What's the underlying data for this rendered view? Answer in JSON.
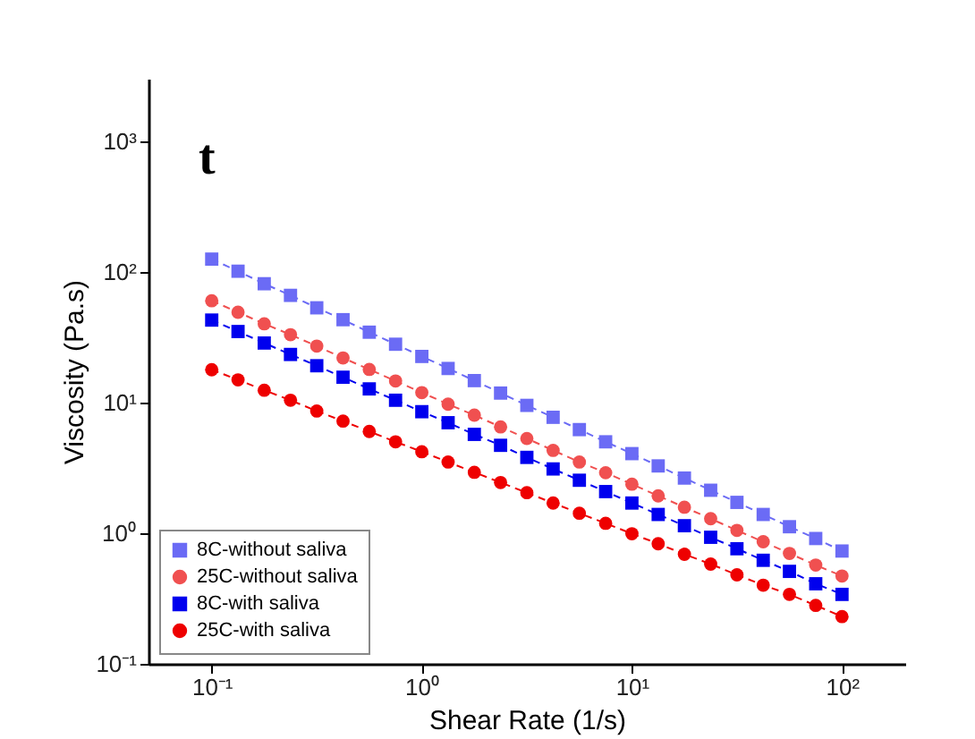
{
  "chart_data": {
    "type": "line",
    "xlabel": "Shear Rate (1/s)",
    "ylabel": "Viscosity (Pa.s)",
    "annotations": [
      "t"
    ],
    "log": "xy",
    "grid": false,
    "legend": "bottom left",
    "line_style": "dashed",
    "x": [
      0.1,
      0.1334,
      0.1778,
      0.2371,
      0.3162,
      0.4217,
      0.5623,
      0.7499,
      1,
      1.334,
      1.778,
      2.371,
      3.162,
      4.217,
      5.623,
      7.499,
      10,
      13.34,
      17.78,
      23.71,
      31.62,
      42.17,
      56.23,
      74.99,
      100
    ],
    "xlim": [
      0.05,
      200
    ],
    "ylim": [
      0.1,
      3000
    ],
    "xticks": [
      {
        "value": 0.1,
        "label": "10⁻¹"
      },
      {
        "value": 1,
        "label": "10⁰"
      },
      {
        "value": 10,
        "label": "10¹"
      },
      {
        "value": 100,
        "label": "10²"
      }
    ],
    "yticks": [
      {
        "value": 0.1,
        "label": "10⁻¹"
      },
      {
        "value": 1,
        "label": "10⁰"
      },
      {
        "value": 10,
        "label": "10¹"
      },
      {
        "value": 100,
        "label": "10²"
      },
      {
        "value": 1000,
        "label": "10³"
      }
    ],
    "series": [
      {
        "name": "8C-without saliva",
        "color": "#6b6bf5",
        "marker": "square",
        "values": [
          125,
          101,
          81,
          66,
          53,
          43,
          34.5,
          27.9,
          22.5,
          18.2,
          14.7,
          11.8,
          9.5,
          7.7,
          6.2,
          5.0,
          4.06,
          3.27,
          2.64,
          2.13,
          1.72,
          1.39,
          1.12,
          0.91,
          0.73
        ]
      },
      {
        "name": "25C-without saliva",
        "color": "#f05050",
        "marker": "circle",
        "values": [
          60,
          49,
          40,
          33,
          27,
          21.9,
          17.9,
          14.6,
          11.9,
          9.7,
          8.0,
          6.5,
          5.3,
          4.3,
          3.5,
          2.9,
          2.37,
          1.93,
          1.58,
          1.29,
          1.05,
          0.86,
          0.7,
          0.57,
          0.47
        ]
      },
      {
        "name": "8C-with saliva",
        "color": "#0000ee",
        "marker": "square",
        "values": [
          42.7,
          34.9,
          28.5,
          23.3,
          19.1,
          15.6,
          12.7,
          10.4,
          8.5,
          7.0,
          5.7,
          4.7,
          3.8,
          3.1,
          2.54,
          2.08,
          1.7,
          1.39,
          1.14,
          0.93,
          0.76,
          0.62,
          0.51,
          0.41,
          0.34
        ]
      },
      {
        "name": "25C-with saliva",
        "color": "#ee0000",
        "marker": "circle",
        "values": [
          17.8,
          14.9,
          12.4,
          10.4,
          8.6,
          7.2,
          6.0,
          5.0,
          4.2,
          3.5,
          2.92,
          2.44,
          2.04,
          1.7,
          1.42,
          1.19,
          0.99,
          0.83,
          0.69,
          0.58,
          0.48,
          0.4,
          0.34,
          0.28,
          0.23
        ]
      }
    ]
  }
}
